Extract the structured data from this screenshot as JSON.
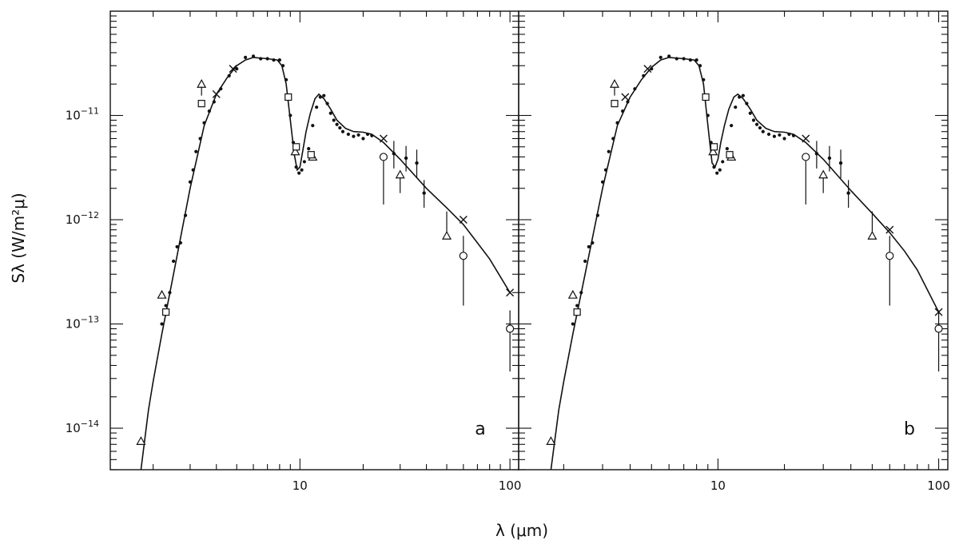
{
  "chart_data": [
    {
      "type": "line",
      "panel_label": "a",
      "title": "",
      "xlabel": "λ (μm)",
      "ylabel": "Sλ (W/m²μ)",
      "xscale": "log",
      "yscale": "log",
      "xlim": [
        1.25,
        110
      ],
      "ylim": [
        4e-15,
        1e-10
      ],
      "xticks": [
        {
          "value": 10,
          "label": "10"
        },
        {
          "value": 100,
          "label": "100"
        }
      ],
      "yticks": [
        {
          "value": 1e-14,
          "base": "10",
          "exp": "−14"
        },
        {
          "value": 1e-13,
          "base": "10",
          "exp": "−13"
        },
        {
          "value": 1e-12,
          "base": "10",
          "exp": "−12"
        },
        {
          "value": 1e-11,
          "base": "10",
          "exp": "−11"
        }
      ],
      "grid": false,
      "legend": "none",
      "series": [
        {
          "kind": "model-line",
          "x": [
            1.75,
            1.9,
            2.0,
            2.2,
            2.5,
            3.0,
            3.5,
            4.0,
            4.5,
            5.0,
            5.5,
            6.0,
            7.0,
            7.8,
            8.2,
            8.6,
            9.0,
            9.4,
            9.7,
            10.0,
            10.3,
            10.7,
            11.2,
            11.8,
            12.3,
            13.0,
            14.0,
            15.0,
            16.5,
            18.0,
            20.0,
            22.0,
            25.0,
            30.0,
            40.0,
            50.0,
            60.0,
            70.0,
            80.0,
            100.0
          ],
          "y": [
            4e-15,
            1.5e-14,
            2.8e-14,
            8e-14,
            3e-13,
            2e-12,
            8e-12,
            1.6e-11,
            2.3e-11,
            3e-11,
            3.4e-11,
            3.6e-11,
            3.5e-11,
            3.4e-11,
            3e-11,
            2e-11,
            9e-12,
            4.2e-12,
            3e-12,
            3.2e-12,
            4.5e-12,
            7e-12,
            1.05e-11,
            1.45e-11,
            1.6e-11,
            1.45e-11,
            1.15e-11,
            9e-12,
            7.5e-12,
            7e-12,
            6.9e-12,
            6.6e-12,
            5.5e-12,
            3.8e-12,
            2e-12,
            1.3e-12,
            9e-13,
            6e-13,
            4.2e-13,
            2e-13
          ]
        },
        {
          "kind": "small-dots",
          "x": [
            2.2,
            2.3,
            2.4,
            2.5,
            2.6,
            2.7,
            2.85,
            3.0,
            3.1,
            3.2,
            3.35,
            3.5,
            3.7,
            3.9,
            4.2,
            4.6,
            5.0,
            5.5,
            6.0,
            6.5,
            7.0,
            7.5,
            8.0,
            8.3,
            8.6,
            9.0,
            9.3,
            9.6,
            9.9,
            10.2,
            10.5,
            11.0,
            11.5,
            12.0,
            12.5,
            13.0,
            13.5,
            14.0,
            14.5,
            15.0,
            15.5,
            16.0,
            17.0,
            18.0,
            19.0,
            20.0,
            21.0,
            22.0
          ],
          "y": [
            1e-13,
            1.5e-13,
            2e-13,
            4e-13,
            5.5e-13,
            6e-13,
            1.1e-12,
            2.3e-12,
            3e-12,
            4.5e-12,
            6e-12,
            8.5e-12,
            1.1e-11,
            1.35e-11,
            1.8e-11,
            2.4e-11,
            2.8e-11,
            3.6e-11,
            3.7e-11,
            3.5e-11,
            3.5e-11,
            3.4e-11,
            3.4e-11,
            3e-11,
            2.2e-11,
            1e-11,
            5.5e-12,
            3.2e-12,
            2.8e-12,
            3e-12,
            3.6e-12,
            4.8e-12,
            8e-12,
            1.2e-11,
            1.5e-11,
            1.55e-11,
            1.3e-11,
            1.05e-11,
            9e-12,
            8.2e-12,
            7.6e-12,
            7e-12,
            6.6e-12,
            6.3e-12,
            6.5e-12,
            6e-12,
            6.6e-12,
            6.4e-12
          ]
        },
        {
          "kind": "triangles",
          "x": [
            1.75,
            2.2,
            3.4,
            9.5,
            11.5,
            30.0,
            50.0
          ],
          "y": [
            7.5e-15,
            1.9e-13,
            2e-11,
            4.5e-12,
            4e-12,
            2.7e-12,
            7e-13
          ],
          "yerr_low": [
            0,
            0,
            4.5e-12,
            0,
            0,
            9e-13,
            0
          ],
          "yerr_high": [
            0,
            0,
            0,
            0,
            0,
            0,
            5e-13
          ]
        },
        {
          "kind": "squares",
          "x": [
            2.3,
            3.4,
            8.8,
            9.6,
            11.3
          ],
          "y": [
            1.3e-13,
            1.3e-11,
            1.5e-11,
            5e-12,
            4.2e-12
          ]
        },
        {
          "kind": "circles",
          "x": [
            25.0,
            60.0,
            100.0
          ],
          "y": [
            4e-12,
            4.5e-13,
            9e-14
          ],
          "yerr_low": [
            2.6e-12,
            3e-13,
            5.5e-14
          ],
          "yerr_high": [
            0,
            2.5e-13,
            4.5e-14
          ]
        },
        {
          "kind": "crosses",
          "x": [
            4.0,
            4.8,
            25.0,
            60.0,
            100.0
          ],
          "y": [
            1.6e-11,
            2.8e-11,
            6e-12,
            1e-12,
            2e-13
          ]
        },
        {
          "kind": "error-points",
          "x": [
            28.0,
            32.0,
            36.0,
            39.0
          ],
          "y": [
            4.3e-12,
            3.9e-12,
            3.5e-12,
            1.8e-12
          ],
          "yerr_low": [
            1.2e-12,
            1e-12,
            1e-12,
            5e-13
          ],
          "yerr_high": [
            1.4e-12,
            1.2e-12,
            1.2e-12,
            6e-13
          ]
        }
      ]
    },
    {
      "type": "line",
      "panel_label": "b",
      "title": "",
      "xlabel": "λ (μm)",
      "ylabel": "Sλ (W/m²μ)",
      "xscale": "log",
      "yscale": "log",
      "xlim": [
        1.25,
        110
      ],
      "ylim": [
        4e-15,
        1e-10
      ],
      "xticks": [
        {
          "value": 10,
          "label": "10"
        },
        {
          "value": 100,
          "label": "100"
        }
      ],
      "yticks": [
        {
          "value": 1e-14,
          "base": "10",
          "exp": "−14"
        },
        {
          "value": 1e-13,
          "base": "10",
          "exp": "−13"
        },
        {
          "value": 1e-12,
          "base": "10",
          "exp": "−12"
        },
        {
          "value": 1e-11,
          "base": "10",
          "exp": "−11"
        }
      ],
      "grid": false,
      "legend": "none",
      "series": [
        {
          "kind": "model-line",
          "x": [
            1.75,
            1.9,
            2.0,
            2.2,
            2.5,
            3.0,
            3.5,
            4.0,
            4.5,
            5.0,
            5.5,
            6.0,
            7.0,
            7.8,
            8.2,
            8.6,
            9.0,
            9.4,
            9.7,
            10.0,
            10.3,
            10.7,
            11.2,
            11.8,
            12.3,
            13.0,
            14.0,
            15.0,
            16.5,
            18.0,
            20.0,
            22.0,
            25.0,
            30.0,
            40.0,
            50.0,
            60.0,
            70.0,
            80.0,
            100.0
          ],
          "y": [
            4e-15,
            1.5e-14,
            2.8e-14,
            8e-14,
            3e-13,
            2e-12,
            8e-12,
            1.5e-11,
            2.2e-11,
            2.9e-11,
            3.4e-11,
            3.6e-11,
            3.5e-11,
            3.4e-11,
            3e-11,
            2e-11,
            8e-12,
            3.5e-12,
            3.2e-12,
            3.8e-12,
            5.5e-12,
            8e-12,
            1.15e-11,
            1.5e-11,
            1.6e-11,
            1.45e-11,
            1.15e-11,
            9e-12,
            7.5e-12,
            7e-12,
            6.9e-12,
            6.6e-12,
            5.5e-12,
            3.8e-12,
            1.9e-12,
            1.15e-12,
            7.5e-13,
            5e-13,
            3.3e-13,
            1.3e-13
          ]
        },
        {
          "kind": "small-dots",
          "x": [
            2.2,
            2.3,
            2.4,
            2.5,
            2.6,
            2.7,
            2.85,
            3.0,
            3.1,
            3.2,
            3.35,
            3.5,
            3.7,
            3.9,
            4.2,
            4.6,
            5.0,
            5.5,
            6.0,
            6.5,
            7.0,
            7.5,
            8.0,
            8.3,
            8.6,
            9.0,
            9.3,
            9.6,
            9.9,
            10.2,
            10.5,
            11.0,
            11.5,
            12.0,
            12.5,
            13.0,
            13.5,
            14.0,
            14.5,
            15.0,
            15.5,
            16.0,
            17.0,
            18.0,
            19.0,
            20.0,
            21.0,
            22.0
          ],
          "y": [
            1e-13,
            1.5e-13,
            2e-13,
            4e-13,
            5.5e-13,
            6e-13,
            1.1e-12,
            2.3e-12,
            3e-12,
            4.5e-12,
            6e-12,
            8.5e-12,
            1.1e-11,
            1.35e-11,
            1.8e-11,
            2.4e-11,
            2.8e-11,
            3.6e-11,
            3.7e-11,
            3.5e-11,
            3.5e-11,
            3.4e-11,
            3.4e-11,
            3e-11,
            2.2e-11,
            1e-11,
            5.5e-12,
            3.2e-12,
            2.8e-12,
            3e-12,
            3.6e-12,
            4.8e-12,
            8e-12,
            1.2e-11,
            1.5e-11,
            1.55e-11,
            1.3e-11,
            1.05e-11,
            9e-12,
            8.2e-12,
            7.6e-12,
            7e-12,
            6.6e-12,
            6.3e-12,
            6.5e-12,
            6e-12,
            6.6e-12,
            6.4e-12
          ]
        },
        {
          "kind": "triangles",
          "x": [
            1.75,
            2.2,
            3.4,
            9.5,
            11.5,
            30.0,
            50.0
          ],
          "y": [
            7.5e-15,
            1.9e-13,
            2e-11,
            4.5e-12,
            4e-12,
            2.7e-12,
            7e-13
          ],
          "yerr_low": [
            0,
            0,
            4.5e-12,
            0,
            0,
            9e-13,
            0
          ],
          "yerr_high": [
            0,
            0,
            0,
            0,
            0,
            0,
            5e-13
          ]
        },
        {
          "kind": "squares",
          "x": [
            2.3,
            3.4,
            8.8,
            9.6,
            11.3
          ],
          "y": [
            1.3e-13,
            1.3e-11,
            1.5e-11,
            5e-12,
            4.2e-12
          ]
        },
        {
          "kind": "circles",
          "x": [
            25.0,
            60.0,
            100.0
          ],
          "y": [
            4e-12,
            4.5e-13,
            9e-14
          ],
          "yerr_low": [
            2.6e-12,
            3e-13,
            5.5e-14
          ],
          "yerr_high": [
            0,
            2.5e-13,
            4.5e-14
          ]
        },
        {
          "kind": "crosses",
          "x": [
            3.8,
            4.8,
            25.0,
            60.0,
            100.0
          ],
          "y": [
            1.5e-11,
            2.8e-11,
            6e-12,
            8e-13,
            1.3e-13
          ]
        },
        {
          "kind": "error-points",
          "x": [
            28.0,
            32.0,
            36.0,
            39.0
          ],
          "y": [
            4.3e-12,
            3.9e-12,
            3.5e-12,
            1.8e-12
          ],
          "yerr_low": [
            1.2e-12,
            1e-12,
            1e-12,
            5e-13
          ],
          "yerr_high": [
            1.4e-12,
            1.2e-12,
            1.2e-12,
            6e-13
          ]
        }
      ]
    }
  ]
}
